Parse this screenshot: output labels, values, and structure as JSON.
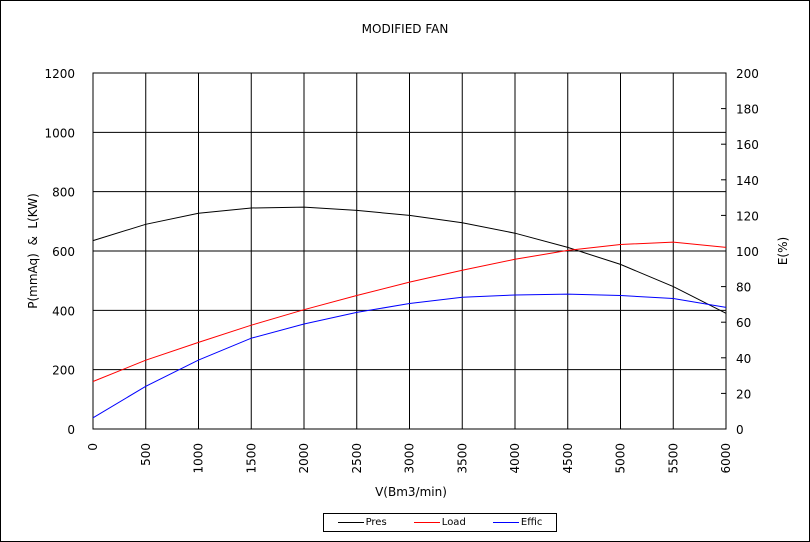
{
  "chart_data": {
    "type": "line",
    "title": "MODIFIED FAN",
    "xlabel": "V(Bm3/min)",
    "ylabel": "P(mmAq)  &  L(KW)",
    "y2label": "E(%)",
    "xlim": [
      0,
      6000
    ],
    "ylim": [
      0,
      1200
    ],
    "y2lim": [
      0,
      200
    ],
    "grid": true,
    "legend_position": "bottom-center",
    "x": [
      0,
      500,
      1000,
      1500,
      2000,
      2500,
      3000,
      3500,
      4000,
      4500,
      5000,
      5500,
      6000
    ],
    "xticks": [
      "0",
      "500",
      "1000",
      "1500",
      "2000",
      "2500",
      "3000",
      "3500",
      "4000",
      "4500",
      "5000",
      "5500",
      "6000"
    ],
    "yticks": [
      "0",
      "200",
      "400",
      "600",
      "800",
      "1000",
      "1200"
    ],
    "y2ticks": [
      "0",
      "20",
      "40",
      "60",
      "80",
      "100",
      "120",
      "140",
      "160",
      "180",
      "200"
    ],
    "series": [
      {
        "name": "Pres",
        "axis": "left",
        "color": "#000000",
        "values": [
          635,
          690,
          727,
          745,
          748,
          737,
          720,
          695,
          660,
          612,
          555,
          480,
          390
        ]
      },
      {
        "name": "Load",
        "axis": "left",
        "color": "#ff0000",
        "values": [
          160,
          232,
          292,
          350,
          402,
          450,
          495,
          535,
          572,
          602,
          622,
          630,
          612
        ]
      },
      {
        "name": "Effic",
        "axis": "right",
        "color": "#0000ff",
        "values": [
          6.3,
          24,
          38.7,
          51,
          59,
          65.5,
          70.5,
          74,
          75.3,
          75.8,
          75,
          73.3,
          68.3
        ]
      }
    ]
  }
}
